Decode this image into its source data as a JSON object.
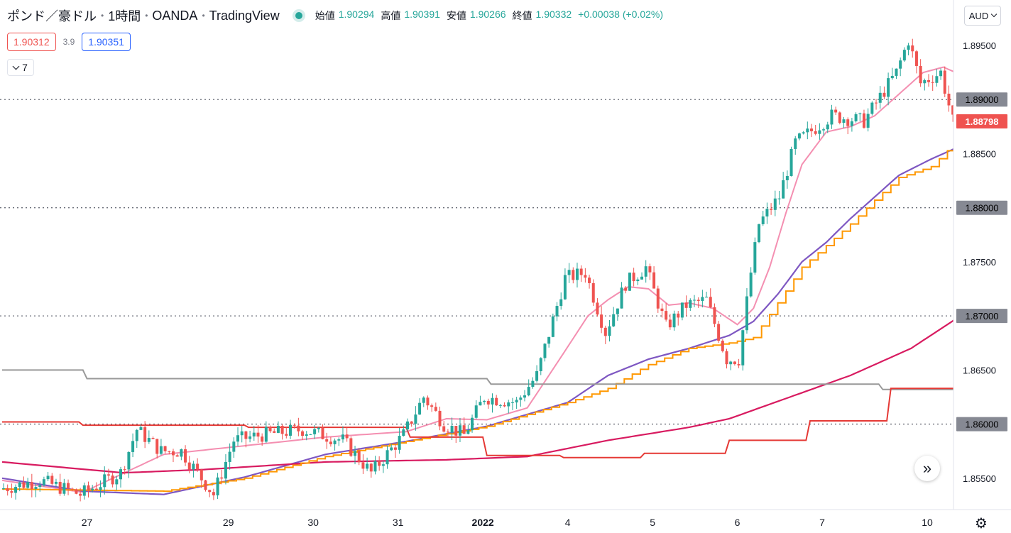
{
  "header": {
    "symbol": "ポンド／豪ドル",
    "interval": "1時間",
    "broker": "OANDA",
    "platform": "TradingView",
    "ohlc": {
      "open_label": "始値",
      "open": "1.90294",
      "high_label": "高値",
      "high": "1.90391",
      "low_label": "安値",
      "low": "1.90266",
      "close_label": "終値",
      "close": "1.90332",
      "change": "+0.00038 (+0.02%)"
    },
    "sell_price": "1.90312",
    "spread": "3.9",
    "buy_price": "1.90351",
    "indicator_count": "7",
    "currency": "AUD"
  },
  "colors": {
    "up": "#26a69a",
    "down": "#ef5350",
    "pink": "#f48fb1",
    "purple": "#7e57c2",
    "crimson": "#d81b60",
    "orange": "#ff9800",
    "red_line": "#e53935",
    "gray_line": "#999999",
    "price_tag": "#ef5350",
    "level_tag": "#868993"
  },
  "chart_data": {
    "type": "candlestick",
    "y_axis": {
      "labels": [
        "1.89500",
        "1.89000",
        "1.88500",
        "1.88000",
        "1.87500",
        "1.87000",
        "1.86500",
        "1.86000",
        "1.85500"
      ],
      "range": [
        1.8521,
        1.8992
      ]
    },
    "x_axis": {
      "labels": [
        {
          "text": "27",
          "bar": 21
        },
        {
          "text": "29",
          "bar": 56
        },
        {
          "text": "30",
          "bar": 77
        },
        {
          "text": "31",
          "bar": 98
        },
        {
          "text": "2022",
          "bar": 119
        },
        {
          "text": "4",
          "bar": 140
        },
        {
          "text": "5",
          "bar": 161
        },
        {
          "text": "6",
          "bar": 182
        },
        {
          "text": "7",
          "bar": 203
        },
        {
          "text": "10",
          "bar": 229
        }
      ]
    },
    "bar_count": 236,
    "current_price": "1.88798",
    "level_lines": [
      "1.89000",
      "1.88000",
      "1.87000",
      "1.86000"
    ],
    "anchors": [
      [
        0,
        1.854
      ],
      [
        10,
        1.8548
      ],
      [
        20,
        1.8535
      ],
      [
        30,
        1.8555
      ],
      [
        34,
        1.8595
      ],
      [
        40,
        1.8575
      ],
      [
        45,
        1.8575
      ],
      [
        53,
        1.8535
      ],
      [
        58,
        1.8585
      ],
      [
        65,
        1.859
      ],
      [
        75,
        1.8595
      ],
      [
        85,
        1.8585
      ],
      [
        92,
        1.8555
      ],
      [
        100,
        1.859
      ],
      [
        105,
        1.8625
      ],
      [
        110,
        1.86
      ],
      [
        115,
        1.859
      ],
      [
        120,
        1.8625
      ],
      [
        128,
        1.862
      ],
      [
        133,
        1.8645
      ],
      [
        140,
        1.8735
      ],
      [
        145,
        1.874
      ],
      [
        150,
        1.8685
      ],
      [
        155,
        1.873
      ],
      [
        160,
        1.8745
      ],
      [
        165,
        1.869
      ],
      [
        170,
        1.871
      ],
      [
        175,
        1.8715
      ],
      [
        180,
        1.866
      ],
      [
        183,
        1.866
      ],
      [
        186,
        1.874
      ],
      [
        188,
        1.8785
      ],
      [
        193,
        1.881
      ],
      [
        197,
        1.886
      ],
      [
        206,
        1.8885
      ],
      [
        214,
        1.888
      ],
      [
        222,
        1.8925
      ],
      [
        225,
        1.8955
      ],
      [
        228,
        1.8915
      ],
      [
        233,
        1.8925
      ],
      [
        236,
        1.888
      ]
    ],
    "series": [
      {
        "name": "ma-pink",
        "anchors": [
          [
            0,
            1.8548
          ],
          [
            20,
            1.8537
          ],
          [
            40,
            1.8572
          ],
          [
            60,
            1.858
          ],
          [
            80,
            1.8588
          ],
          [
            100,
            1.8593
          ],
          [
            110,
            1.8605
          ],
          [
            120,
            1.8604
          ],
          [
            130,
            1.8615
          ],
          [
            138,
            1.866
          ],
          [
            145,
            1.87
          ],
          [
            150,
            1.8715
          ],
          [
            155,
            1.8727
          ],
          [
            160,
            1.8725
          ],
          [
            165,
            1.871
          ],
          [
            170,
            1.8712
          ],
          [
            176,
            1.8707
          ],
          [
            182,
            1.8692
          ],
          [
            186,
            1.8707
          ],
          [
            190,
            1.8745
          ],
          [
            194,
            1.8795
          ],
          [
            198,
            1.884
          ],
          [
            204,
            1.887
          ],
          [
            210,
            1.8875
          ],
          [
            216,
            1.8885
          ],
          [
            222,
            1.8905
          ],
          [
            228,
            1.8925
          ],
          [
            233,
            1.893
          ],
          [
            236,
            1.8925
          ]
        ]
      },
      {
        "name": "ma-purple",
        "anchors": [
          [
            0,
            1.855
          ],
          [
            20,
            1.8538
          ],
          [
            40,
            1.8535
          ],
          [
            60,
            1.8551
          ],
          [
            80,
            1.8572
          ],
          [
            100,
            1.8584
          ],
          [
            120,
            1.8598
          ],
          [
            140,
            1.862
          ],
          [
            150,
            1.8645
          ],
          [
            160,
            1.866
          ],
          [
            170,
            1.867
          ],
          [
            180,
            1.8682
          ],
          [
            186,
            1.8695
          ],
          [
            192,
            1.872
          ],
          [
            198,
            1.875
          ],
          [
            204,
            1.8768
          ],
          [
            210,
            1.879
          ],
          [
            216,
            1.881
          ],
          [
            222,
            1.883
          ],
          [
            230,
            1.8845
          ],
          [
            236,
            1.8855
          ]
        ]
      },
      {
        "name": "ma-crimson",
        "anchors": [
          [
            0,
            1.8565
          ],
          [
            15,
            1.856
          ],
          [
            30,
            1.8555
          ],
          [
            50,
            1.8558
          ],
          [
            80,
            1.8565
          ],
          [
            110,
            1.8567
          ],
          [
            130,
            1.857
          ],
          [
            150,
            1.8585
          ],
          [
            170,
            1.8597
          ],
          [
            180,
            1.8605
          ],
          [
            195,
            1.8625
          ],
          [
            210,
            1.8645
          ],
          [
            225,
            1.867
          ],
          [
            236,
            1.8697
          ]
        ]
      },
      {
        "name": "step-orange",
        "anchors": [
          [
            0,
            1.854
          ],
          [
            40,
            1.8538
          ],
          [
            60,
            1.855
          ],
          [
            80,
            1.857
          ],
          [
            100,
            1.8584
          ],
          [
            120,
            1.8598
          ],
          [
            140,
            1.862
          ],
          [
            150,
            1.8633
          ],
          [
            160,
            1.8655
          ],
          [
            170,
            1.867
          ],
          [
            180,
            1.8675
          ],
          [
            186,
            1.868
          ],
          [
            192,
            1.8712
          ],
          [
            198,
            1.8745
          ],
          [
            204,
            1.8765
          ],
          [
            210,
            1.8785
          ],
          [
            216,
            1.8807
          ],
          [
            222,
            1.8828
          ],
          [
            230,
            1.8838
          ],
          [
            236,
            1.886
          ]
        ]
      },
      {
        "name": "level-gray",
        "anchors": [
          [
            0,
            1.865
          ],
          [
            20,
            1.865
          ],
          [
            21,
            1.8642
          ],
          [
            120,
            1.8642
          ],
          [
            121,
            1.8637
          ],
          [
            217,
            1.8637
          ],
          [
            218,
            1.8632
          ],
          [
            236,
            1.8632
          ]
        ]
      },
      {
        "name": "level-red",
        "anchors": [
          [
            0,
            1.8602
          ],
          [
            19,
            1.8602
          ],
          [
            20,
            1.8599
          ],
          [
            60,
            1.8599
          ],
          [
            61,
            1.8597
          ],
          [
            100,
            1.8597
          ],
          [
            101,
            1.8588
          ],
          [
            119,
            1.8588
          ],
          [
            120,
            1.8571
          ],
          [
            138,
            1.8571
          ],
          [
            139,
            1.8569
          ],
          [
            158,
            1.8569
          ],
          [
            159,
            1.8573
          ],
          [
            179,
            1.8573
          ],
          [
            180,
            1.8585
          ],
          [
            199,
            1.8585
          ],
          [
            200,
            1.8603
          ],
          [
            219,
            1.8603
          ],
          [
            220,
            1.8633
          ],
          [
            236,
            1.8633
          ]
        ]
      }
    ]
  }
}
